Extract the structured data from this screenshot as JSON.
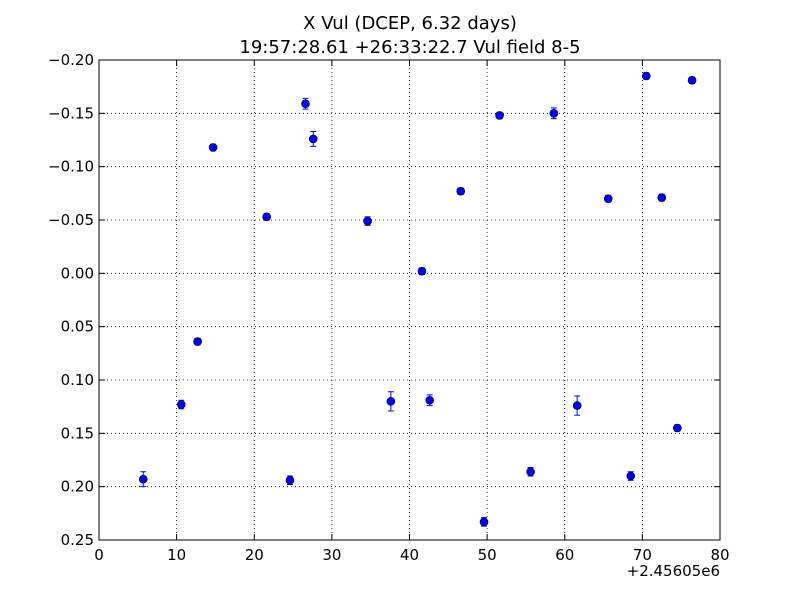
{
  "chart_data": {
    "type": "scatter",
    "title": "X Vul (DCEP, 6.32 days)",
    "subtitle": "19:57:28.61 +26:33:22.7 Vul field 8-5",
    "xlabel": "",
    "ylabel": "",
    "x_offset_label": "+2.45605e6",
    "xlim": [
      0,
      80
    ],
    "ylim": [
      0.25,
      -0.2
    ],
    "y_inverted": true,
    "grid": true,
    "x_ticks": [
      0,
      10,
      20,
      30,
      40,
      50,
      60,
      70,
      80
    ],
    "x_tick_labels": [
      "0",
      "10",
      "20",
      "30",
      "40",
      "50",
      "60",
      "70",
      "80"
    ],
    "y_ticks": [
      -0.2,
      -0.15,
      -0.1,
      -0.05,
      0.0,
      0.05,
      0.1,
      0.15,
      0.2,
      0.25
    ],
    "y_tick_labels": [
      "−0.20",
      "−0.15",
      "−0.10",
      "−0.05",
      "0.00",
      "0.05",
      "0.10",
      "0.15",
      "0.20",
      "0.25"
    ],
    "marker_color": "#0000ff",
    "points": [
      {
        "x": 5.7,
        "y": 0.193,
        "err": 0.007
      },
      {
        "x": 10.6,
        "y": 0.123,
        "err": 0.004
      },
      {
        "x": 12.7,
        "y": 0.064,
        "err": 0.003
      },
      {
        "x": 14.7,
        "y": -0.118,
        "err": 0.003
      },
      {
        "x": 21.6,
        "y": -0.053,
        "err": 0.003
      },
      {
        "x": 24.6,
        "y": 0.194,
        "err": 0.004
      },
      {
        "x": 26.6,
        "y": -0.159,
        "err": 0.005
      },
      {
        "x": 27.6,
        "y": -0.126,
        "err": 0.007
      },
      {
        "x": 34.6,
        "y": -0.049,
        "err": 0.004
      },
      {
        "x": 37.6,
        "y": 0.12,
        "err": 0.009
      },
      {
        "x": 41.6,
        "y": -0.002,
        "err": 0.003
      },
      {
        "x": 42.6,
        "y": 0.119,
        "err": 0.005
      },
      {
        "x": 46.6,
        "y": -0.077,
        "err": 0.003
      },
      {
        "x": 49.6,
        "y": 0.233,
        "err": 0.004
      },
      {
        "x": 51.6,
        "y": -0.148,
        "err": 0.003
      },
      {
        "x": 55.6,
        "y": 0.186,
        "err": 0.004
      },
      {
        "x": 58.6,
        "y": -0.15,
        "err": 0.005
      },
      {
        "x": 61.6,
        "y": 0.124,
        "err": 0.009
      },
      {
        "x": 65.6,
        "y": -0.07,
        "err": 0.003
      },
      {
        "x": 68.5,
        "y": 0.19,
        "err": 0.004
      },
      {
        "x": 70.5,
        "y": -0.185,
        "err": 0.003
      },
      {
        "x": 72.5,
        "y": -0.071,
        "err": 0.003
      },
      {
        "x": 74.5,
        "y": 0.145,
        "err": 0.003
      },
      {
        "x": 76.4,
        "y": -0.181,
        "err": 0.003
      }
    ]
  }
}
